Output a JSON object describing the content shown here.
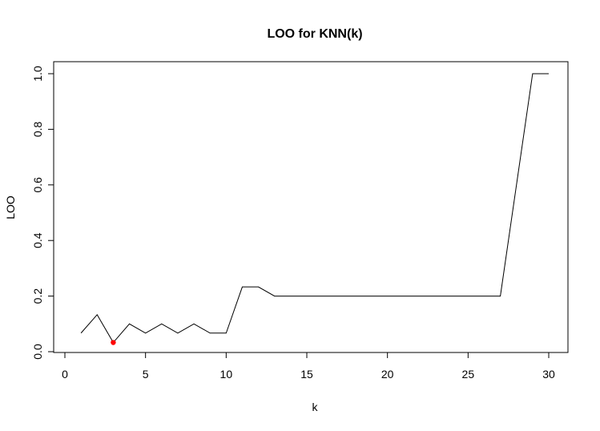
{
  "chart_data": {
    "type": "line",
    "title": "LOO for KNN(k)",
    "xlabel": "k",
    "ylabel": "LOO",
    "xlim": [
      0,
      30
    ],
    "ylim": [
      0,
      1
    ],
    "x_ticks": [
      0,
      5,
      10,
      15,
      20,
      25,
      30
    ],
    "x_tick_labels": [
      "0",
      "5",
      "10",
      "15",
      "20",
      "25",
      "30"
    ],
    "y_ticks": [
      0,
      0.2,
      0.4,
      0.6,
      0.8,
      1
    ],
    "y_tick_labels": [
      "0.0",
      "0.2",
      "0.4",
      "0.6",
      "0.8",
      "1.0"
    ],
    "grid": false,
    "series": [
      {
        "x": [
          1,
          2,
          3,
          4,
          5,
          6,
          7,
          8,
          9,
          10,
          11,
          12,
          13,
          14,
          15,
          16,
          17,
          18,
          19,
          20,
          21,
          22,
          23,
          24,
          25,
          26,
          27,
          28,
          29,
          30
        ],
        "values": [
          0.067,
          0.133,
          0.033,
          0.1,
          0.067,
          0.1,
          0.067,
          0.1,
          0.067,
          0.067,
          0.233,
          0.233,
          0.2,
          0.2,
          0.2,
          0.2,
          0.2,
          0.2,
          0.2,
          0.2,
          0.2,
          0.2,
          0.2,
          0.2,
          0.2,
          0.2,
          0.2,
          0.6,
          1.0,
          1.0
        ],
        "color": "#000000"
      }
    ],
    "highlight_point": {
      "x": 3,
      "y": 0.033,
      "color": "#ff0000"
    }
  }
}
